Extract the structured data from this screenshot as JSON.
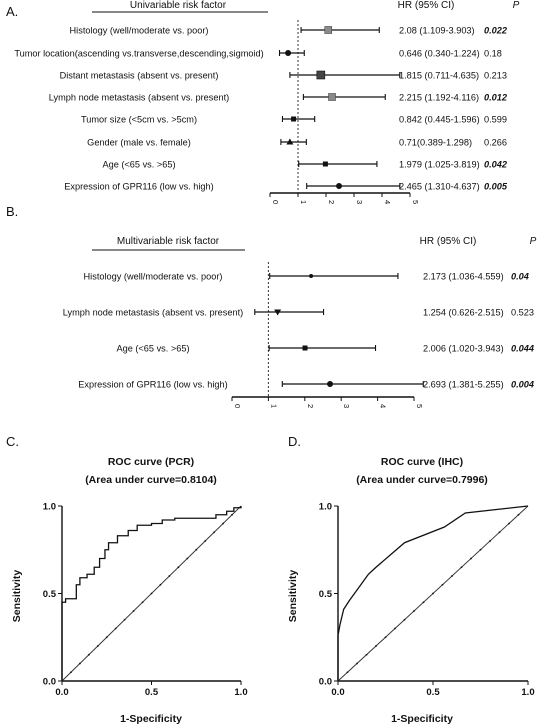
{
  "chart_data": [
    {
      "type": "forest",
      "panel": "A.",
      "header": {
        "factor": "Univariable risk factor",
        "hr": "HR (95% CI)",
        "p": "P"
      },
      "xlim": [
        0,
        5
      ],
      "xticks": [
        0,
        1,
        2,
        3,
        4,
        5
      ],
      "reference_line": 1,
      "rows": [
        {
          "label": "Histology (well/moderate vs. poor)",
          "hr": 2.08,
          "ci": [
            1.109,
            3.903
          ],
          "hr_text": "2.08 (1.109-3.903)",
          "p_text": "0.022",
          "significant": true,
          "marker": "square-gray"
        },
        {
          "label": "Tumor location(ascending vs.transverse,descending,sigmoid)",
          "hr": 0.646,
          "ci": [
            0.34,
            1.224
          ],
          "hr_text": "0.646 (0.340-1.224)",
          "p_text": "0.18",
          "significant": false,
          "marker": "dot"
        },
        {
          "label": "Distant metastasis (absent vs. present)",
          "hr": 1.815,
          "ci": [
            0.711,
            4.635
          ],
          "hr_text": "1.815 (0.711-4.635)",
          "p_text": "0.213",
          "significant": false,
          "marker": "square-dark"
        },
        {
          "label": "Lymph node metastasis (absent vs. present)",
          "hr": 2.215,
          "ci": [
            1.192,
            4.116
          ],
          "hr_text": "2.215 (1.192-4.116)",
          "p_text": "0.012",
          "significant": true,
          "marker": "square-gray"
        },
        {
          "label": "Tumor size (<5cm vs. >5cm)",
          "hr": 0.842,
          "ci": [
            0.445,
            1.596
          ],
          "hr_text": "0.842 (0.445-1.596)",
          "p_text": "0.599",
          "significant": false,
          "marker": "square-small"
        },
        {
          "label": "Gender (male vs. female)",
          "hr": 0.71,
          "ci": [
            0.389,
            1.298
          ],
          "hr_text": "0.71(0.389-1.298)",
          "p_text": "0.266",
          "significant": false,
          "marker": "triangle"
        },
        {
          "label": "Age (<65 vs. >65)",
          "hr": 1.979,
          "ci": [
            1.025,
            3.819
          ],
          "hr_text": "1.979 (1.025-3.819)",
          "p_text": "0.042",
          "significant": true,
          "marker": "square-small"
        },
        {
          "label": "Expression of GPR116 (low vs. high)",
          "hr": 2.465,
          "ci": [
            1.31,
            4.637
          ],
          "hr_text": "2.465 (1.310-4.637)",
          "p_text": "0.005",
          "significant": true,
          "marker": "dot"
        }
      ]
    },
    {
      "type": "forest",
      "panel": "B.",
      "header": {
        "factor": "Multivariable risk factor",
        "hr": "HR (95%  CI)",
        "p": "P"
      },
      "xlim": [
        0,
        5
      ],
      "xticks": [
        0,
        1,
        2,
        3,
        4,
        5
      ],
      "reference_line": 1,
      "rows": [
        {
          "label": "Histology (well/moderate vs. poor)",
          "hr": 2.173,
          "ci": [
            1.036,
            4.559
          ],
          "hr_text": "2.173 (1.036-4.559)",
          "p_text": "0.04",
          "significant": true,
          "marker": "dot-small"
        },
        {
          "label": "Lymph node metastasis (absent vs. present)",
          "hr": 1.254,
          "ci": [
            0.626,
            2.515
          ],
          "hr_text": "1.254 (0.626-2.515)",
          "p_text": "0.523",
          "significant": false,
          "marker": "triangle-down"
        },
        {
          "label": "Age (<65 vs. >65)",
          "hr": 2.006,
          "ci": [
            1.02,
            3.943
          ],
          "hr_text": "2.006 (1.020-3.943)",
          "p_text": "0.044",
          "significant": true,
          "marker": "square-small"
        },
        {
          "label": "Expression of GPR116 (low vs. high)",
          "hr": 2.693,
          "ci": [
            1.381,
            5.255
          ],
          "hr_text": "2.693 (1.381-5.255)",
          "p_text": "0.004",
          "significant": true,
          "marker": "dot"
        }
      ]
    },
    {
      "type": "line",
      "panel": "C.",
      "title": "ROC curve (PCR)",
      "subtitle": "(Area under curve=0.8104)",
      "xlabel": "1-Specificity",
      "ylabel": "Sensitivity",
      "xlim": [
        0,
        1
      ],
      "ylim": [
        0,
        1
      ],
      "xticks": [
        "0.0",
        "0.5",
        "1.0"
      ],
      "yticks": [
        "0.0",
        "0.5",
        "1.0"
      ],
      "diagonal": true,
      "roc": [
        [
          0,
          0
        ],
        [
          0,
          0.45
        ],
        [
          0.02,
          0.45
        ],
        [
          0.02,
          0.47
        ],
        [
          0.08,
          0.47
        ],
        [
          0.08,
          0.55
        ],
        [
          0.1,
          0.55
        ],
        [
          0.1,
          0.59
        ],
        [
          0.14,
          0.59
        ],
        [
          0.14,
          0.61
        ],
        [
          0.18,
          0.61
        ],
        [
          0.18,
          0.65
        ],
        [
          0.21,
          0.65
        ],
        [
          0.21,
          0.7
        ],
        [
          0.24,
          0.7
        ],
        [
          0.24,
          0.75
        ],
        [
          0.26,
          0.75
        ],
        [
          0.26,
          0.79
        ],
        [
          0.31,
          0.79
        ],
        [
          0.31,
          0.83
        ],
        [
          0.37,
          0.83
        ],
        [
          0.37,
          0.86
        ],
        [
          0.42,
          0.86
        ],
        [
          0.42,
          0.89
        ],
        [
          0.5,
          0.89
        ],
        [
          0.5,
          0.9
        ],
        [
          0.56,
          0.9
        ],
        [
          0.56,
          0.92
        ],
        [
          0.63,
          0.92
        ],
        [
          0.63,
          0.93
        ],
        [
          0.86,
          0.93
        ],
        [
          0.86,
          0.95
        ],
        [
          0.92,
          0.95
        ],
        [
          0.92,
          0.97
        ],
        [
          0.96,
          0.97
        ],
        [
          0.96,
          0.99
        ],
        [
          1,
          0.99
        ],
        [
          1,
          1
        ]
      ]
    },
    {
      "type": "line",
      "panel": "D.",
      "title": "ROC curve (IHC)",
      "subtitle": "(Area under curve=0.7996)",
      "xlabel": "1-Specificity",
      "ylabel": "Sensitivity",
      "xlim": [
        0,
        1
      ],
      "ylim": [
        0,
        1
      ],
      "xticks": [
        "0.0",
        "0.5",
        "1.0"
      ],
      "yticks": [
        "0.0",
        "0.5",
        "1.0"
      ],
      "diagonal": true,
      "roc": [
        [
          0,
          0
        ],
        [
          0,
          0.26
        ],
        [
          0.01,
          0.32
        ],
        [
          0.03,
          0.41
        ],
        [
          0.06,
          0.46
        ],
        [
          0.16,
          0.61
        ],
        [
          0.2,
          0.65
        ],
        [
          0.35,
          0.79
        ],
        [
          0.56,
          0.88
        ],
        [
          0.67,
          0.96
        ],
        [
          1,
          1
        ]
      ]
    }
  ]
}
